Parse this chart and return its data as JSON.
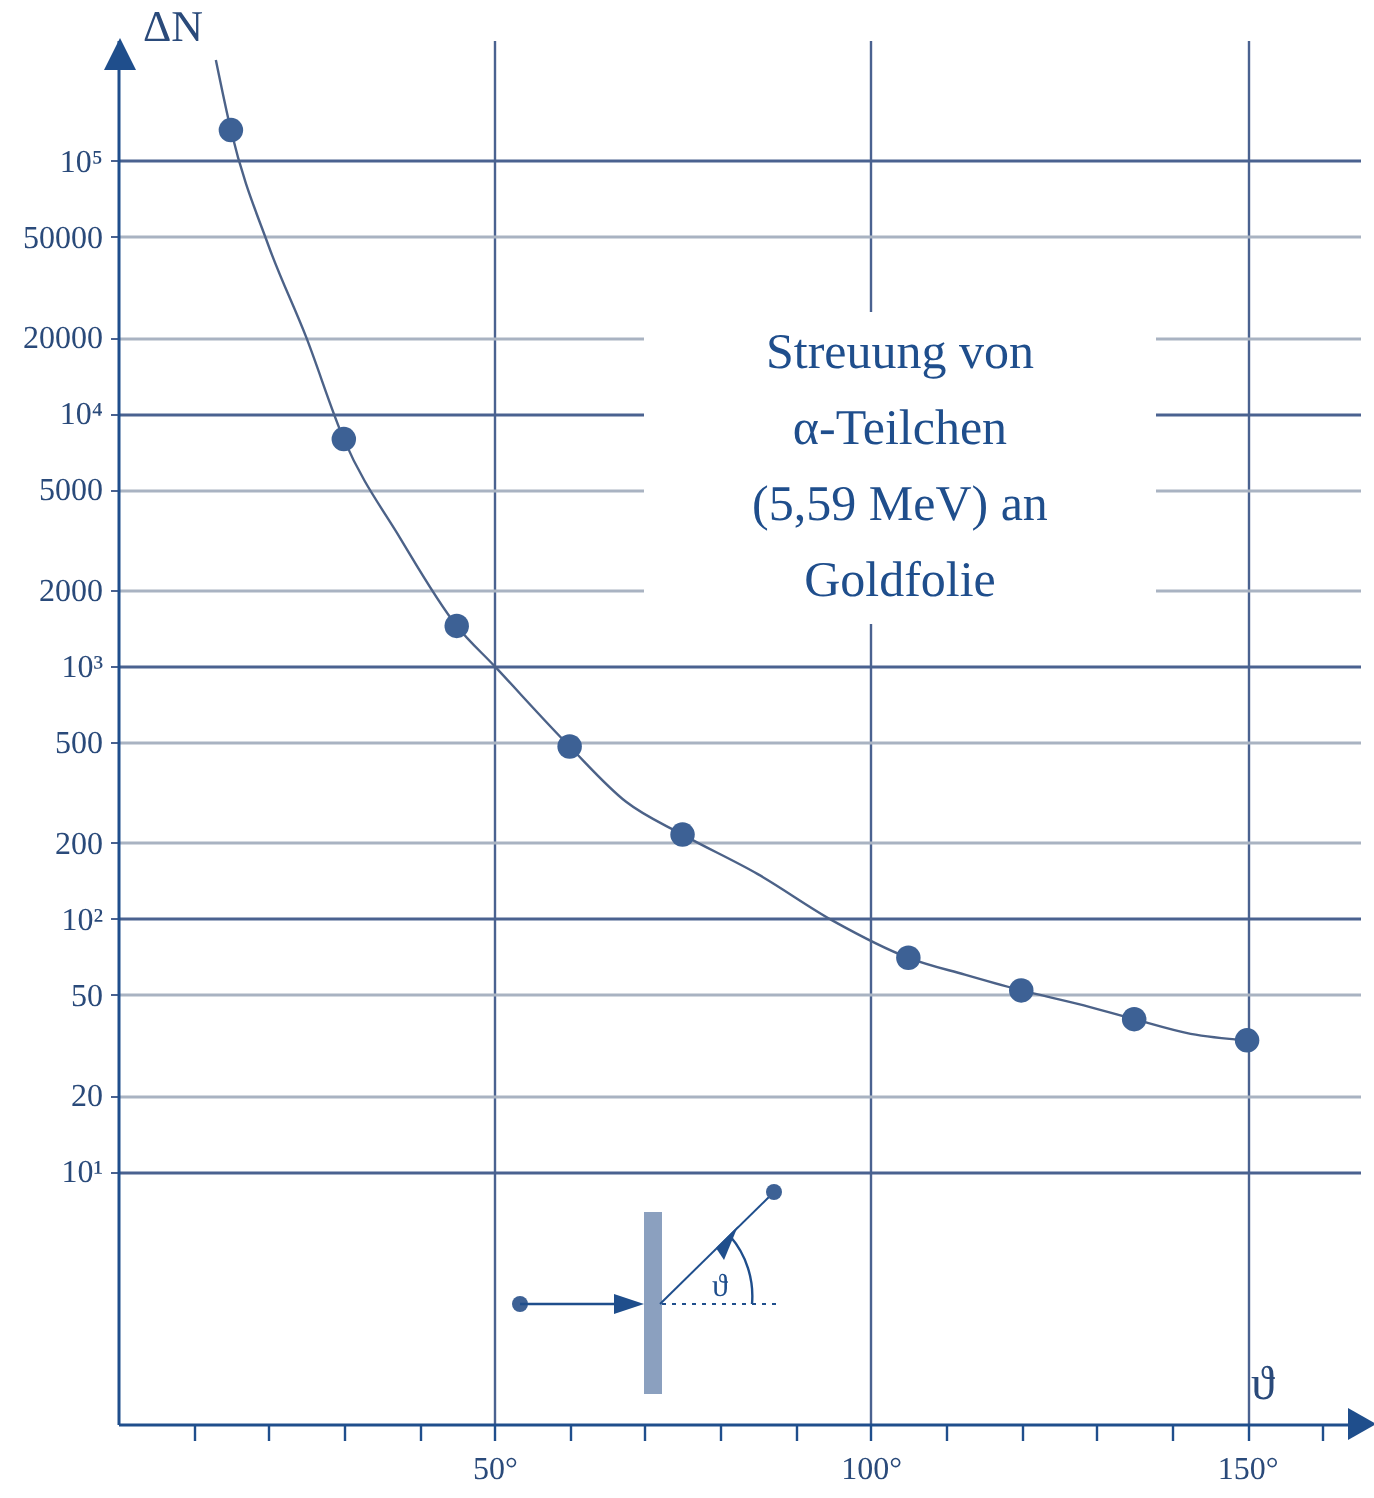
{
  "chart_data": {
    "type": "scatter",
    "xlabel": "ϑ",
    "ylabel": "ΔN",
    "annotations": [
      "Streuung von\nα-Teilchen\n(5,59 MeV) an\nGoldfolie",
      "ϑ"
    ],
    "series": [
      {
        "type": "line",
        "marker": "none",
        "color": "#4c6288",
        "x": [
          13,
          15,
          20,
          25,
          30,
          37.5,
          45,
          50,
          60,
          67.5,
          75,
          85,
          95,
          105,
          112.5,
          120,
          127.5,
          135,
          142.5,
          150
        ],
        "values": [
          250000,
          132000,
          46000,
          20000,
          7900,
          3200,
          1440,
          1000,
          480,
          290,
          215,
          150,
          98,
          70,
          60,
          52,
          46,
          40,
          35,
          33
        ]
      },
      {
        "color": "#3d6195",
        "x": [
          15,
          30,
          45,
          60,
          75,
          105,
          120,
          135,
          150
        ],
        "values": [
          132000,
          7900,
          1440,
          480,
          215,
          70,
          52,
          40,
          33
        ]
      }
    ],
    "log": "y",
    "marker": "circle",
    "grid": true,
    "line_style": "solid",
    "xlim": [
      0,
      165
    ],
    "xticks": [
      {
        "value": 10,
        "label": null
      },
      {
        "value": 20,
        "label": null
      },
      {
        "value": 30,
        "label": null
      },
      {
        "value": 40,
        "label": null
      },
      {
        "value": 50,
        "label": "50°"
      },
      {
        "value": 60,
        "label": null
      },
      {
        "value": 70,
        "label": null
      },
      {
        "value": 80,
        "label": null
      },
      {
        "value": 90,
        "label": null
      },
      {
        "value": 100,
        "label": "100°"
      },
      {
        "value": 110,
        "label": null
      },
      {
        "value": 120,
        "label": null
      },
      {
        "value": 130,
        "label": null
      },
      {
        "value": 140,
        "label": null
      },
      {
        "value": 150,
        "label": "150°"
      },
      {
        "value": 160,
        "label": null
      }
    ],
    "ylim": [
      1,
      300000
    ],
    "yticks": [
      {
        "value": 10,
        "label": "10¹"
      },
      20,
      50,
      {
        "value": 100,
        "label": "10²"
      },
      200,
      500,
      {
        "value": 1000,
        "label": "10³"
      },
      2000,
      5000,
      {
        "value": 10000,
        "label": "10⁴"
      },
      20000,
      50000,
      {
        "value": 100000,
        "label": "10⁵"
      }
    ]
  }
}
